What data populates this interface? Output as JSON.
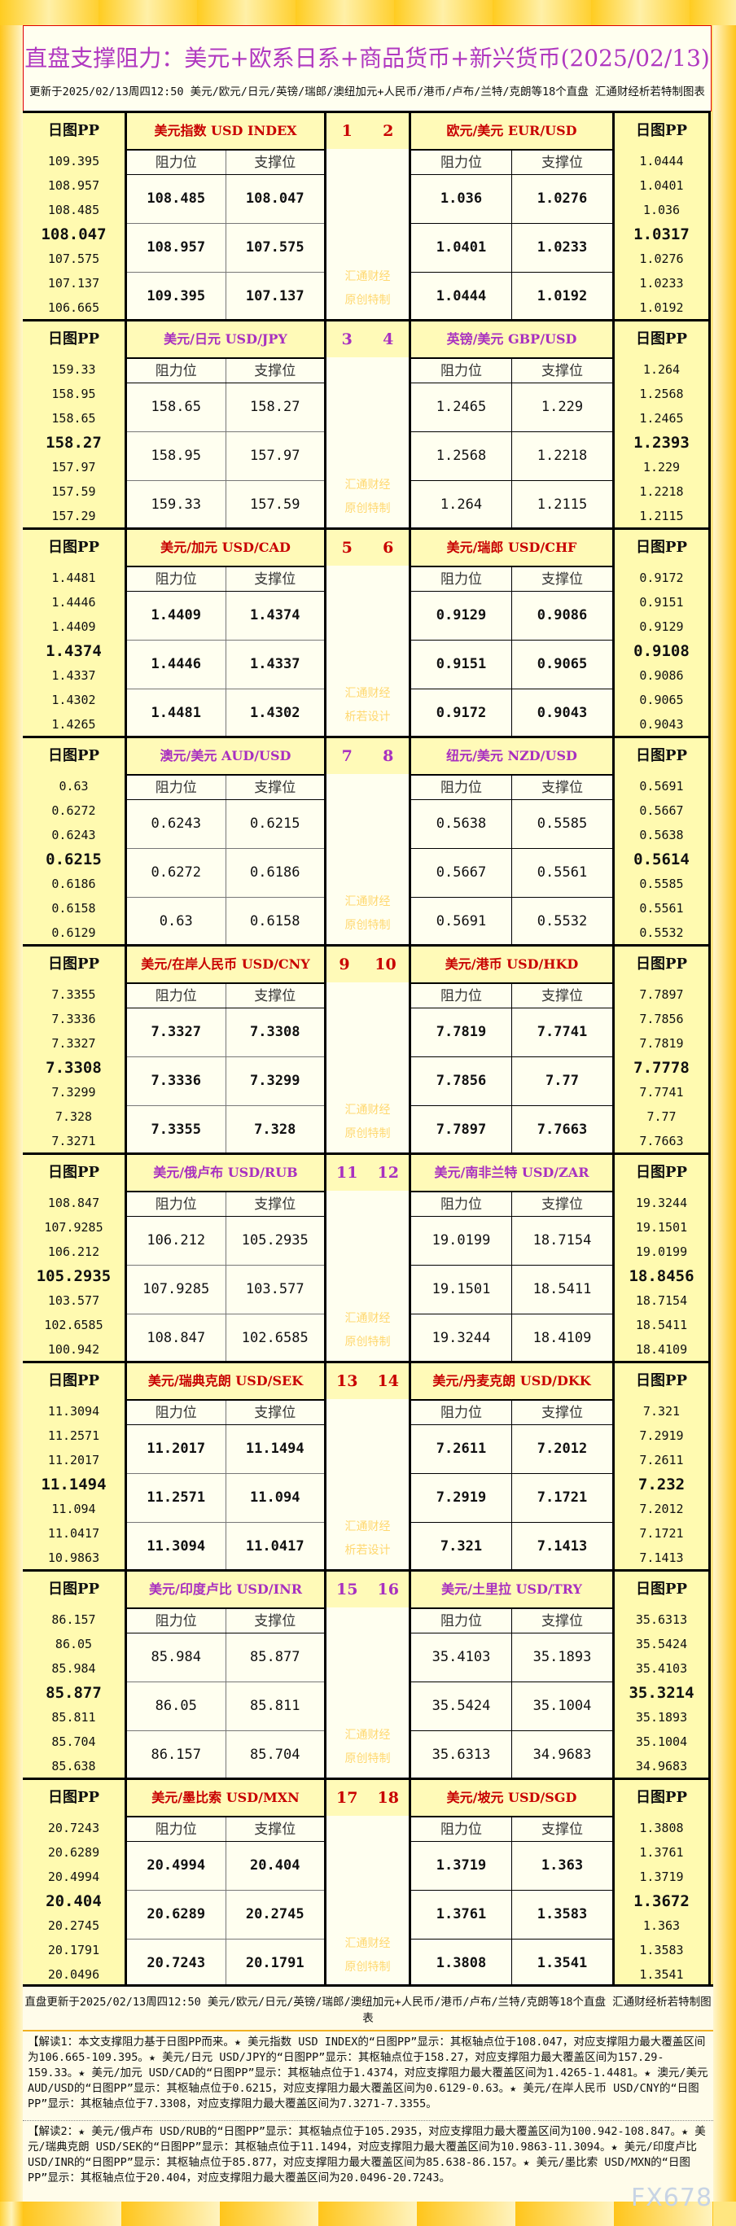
{
  "header": {
    "title": "直盘支撑阻力：美元+欧系日系+商品货币+新兴货币(2025/02/13)",
    "subtitle": "更新于2025/02/13周四12:50 美元/欧元/日元/英镑/瑞郎/澳纽加元+人民币/港币/卢布/兰特/克朗等18个直盘 汇通财经析若特制图表"
  },
  "labels": {
    "pp": "日图PP",
    "resistance": "阻力位",
    "support": "支撑位"
  },
  "colors": {
    "odd": "#c80000",
    "even": "#a830c0",
    "gold": "#ffc820",
    "cream": "#fffff0",
    "pp_bg": "#fffab0"
  },
  "blocks": [
    {
      "nums": [
        "1",
        "2"
      ],
      "watermark": [
        "汇通财经",
        "原创特制"
      ],
      "left": {
        "name": "美元指数 USD INDEX",
        "pp": [
          "109.395",
          "108.957",
          "108.485",
          "108.047",
          "107.575",
          "107.137",
          "106.665"
        ],
        "res": [
          "108.485",
          "108.957",
          "109.395"
        ],
        "sup": [
          "108.047",
          "107.575",
          "107.137"
        ]
      },
      "right": {
        "name": "欧元/美元 EUR/USD",
        "pp": [
          "1.0444",
          "1.0401",
          "1.036",
          "1.0317",
          "1.0276",
          "1.0233",
          "1.0192"
        ],
        "res": [
          "1.036",
          "1.0401",
          "1.0444"
        ],
        "sup": [
          "1.0276",
          "1.0233",
          "1.0192"
        ]
      }
    },
    {
      "nums": [
        "3",
        "4"
      ],
      "watermark": [
        "汇通财经",
        "原创特制"
      ],
      "left": {
        "name": "美元/日元 USD/JPY",
        "pp": [
          "159.33",
          "158.95",
          "158.65",
          "158.27",
          "157.97",
          "157.59",
          "157.29"
        ],
        "res": [
          "158.65",
          "158.95",
          "159.33"
        ],
        "sup": [
          "158.27",
          "157.97",
          "157.59"
        ]
      },
      "right": {
        "name": "英镑/美元 GBP/USD",
        "pp": [
          "1.264",
          "1.2568",
          "1.2465",
          "1.2393",
          "1.229",
          "1.2218",
          "1.2115"
        ],
        "res": [
          "1.2465",
          "1.2568",
          "1.264"
        ],
        "sup": [
          "1.229",
          "1.2218",
          "1.2115"
        ]
      }
    },
    {
      "nums": [
        "5",
        "6"
      ],
      "watermark": [
        "汇通财经",
        "析若设计"
      ],
      "left": {
        "name": "美元/加元 USD/CAD",
        "pp": [
          "1.4481",
          "1.4446",
          "1.4409",
          "1.4374",
          "1.4337",
          "1.4302",
          "1.4265"
        ],
        "res": [
          "1.4409",
          "1.4446",
          "1.4481"
        ],
        "sup": [
          "1.4374",
          "1.4337",
          "1.4302"
        ]
      },
      "right": {
        "name": "美元/瑞郎 USD/CHF",
        "pp": [
          "0.9172",
          "0.9151",
          "0.9129",
          "0.9108",
          "0.9086",
          "0.9065",
          "0.9043"
        ],
        "res": [
          "0.9129",
          "0.9151",
          "0.9172"
        ],
        "sup": [
          "0.9086",
          "0.9065",
          "0.9043"
        ]
      }
    },
    {
      "nums": [
        "7",
        "8"
      ],
      "watermark": [
        "汇通财经",
        "原创特制"
      ],
      "left": {
        "name": "澳元/美元 AUD/USD",
        "pp": [
          "0.63",
          "0.6272",
          "0.6243",
          "0.6215",
          "0.6186",
          "0.6158",
          "0.6129"
        ],
        "res": [
          "0.6243",
          "0.6272",
          "0.63"
        ],
        "sup": [
          "0.6215",
          "0.6186",
          "0.6158"
        ]
      },
      "right": {
        "name": "纽元/美元 NZD/USD",
        "pp": [
          "0.5691",
          "0.5667",
          "0.5638",
          "0.5614",
          "0.5585",
          "0.5561",
          "0.5532"
        ],
        "res": [
          "0.5638",
          "0.5667",
          "0.5691"
        ],
        "sup": [
          "0.5585",
          "0.5561",
          "0.5532"
        ]
      }
    },
    {
      "nums": [
        "9",
        "10"
      ],
      "watermark": [
        "汇通财经",
        "原创特制"
      ],
      "left": {
        "name": "美元/在岸人民币 USD/CNY",
        "pp": [
          "7.3355",
          "7.3336",
          "7.3327",
          "7.3308",
          "7.3299",
          "7.328",
          "7.3271"
        ],
        "res": [
          "7.3327",
          "7.3336",
          "7.3355"
        ],
        "sup": [
          "7.3308",
          "7.3299",
          "7.328"
        ]
      },
      "right": {
        "name": "美元/港币 USD/HKD",
        "pp": [
          "7.7897",
          "7.7856",
          "7.7819",
          "7.7778",
          "7.7741",
          "7.77",
          "7.7663"
        ],
        "res": [
          "7.7819",
          "7.7856",
          "7.7897"
        ],
        "sup": [
          "7.7741",
          "7.77",
          "7.7663"
        ]
      }
    },
    {
      "nums": [
        "11",
        "12"
      ],
      "watermark": [
        "汇通财经",
        "原创特制"
      ],
      "left": {
        "name": "美元/俄卢布 USD/RUB",
        "pp": [
          "108.847",
          "107.9285",
          "106.212",
          "105.2935",
          "103.577",
          "102.6585",
          "100.942"
        ],
        "res": [
          "106.212",
          "107.9285",
          "108.847"
        ],
        "sup": [
          "105.2935",
          "103.577",
          "102.6585"
        ]
      },
      "right": {
        "name": "美元/南非兰特 USD/ZAR",
        "pp": [
          "19.3244",
          "19.1501",
          "19.0199",
          "18.8456",
          "18.7154",
          "18.5411",
          "18.4109"
        ],
        "res": [
          "19.0199",
          "19.1501",
          "19.3244"
        ],
        "sup": [
          "18.7154",
          "18.5411",
          "18.4109"
        ]
      }
    },
    {
      "nums": [
        "13",
        "14"
      ],
      "watermark": [
        "汇通财经",
        "析若设计"
      ],
      "left": {
        "name": "美元/瑞典克朗 USD/SEK",
        "pp": [
          "11.3094",
          "11.2571",
          "11.2017",
          "11.1494",
          "11.094",
          "11.0417",
          "10.9863"
        ],
        "res": [
          "11.2017",
          "11.2571",
          "11.3094"
        ],
        "sup": [
          "11.1494",
          "11.094",
          "11.0417"
        ]
      },
      "right": {
        "name": "美元/丹麦克朗 USD/DKK",
        "pp": [
          "7.321",
          "7.2919",
          "7.2611",
          "7.232",
          "7.2012",
          "7.1721",
          "7.1413"
        ],
        "res": [
          "7.2611",
          "7.2919",
          "7.321"
        ],
        "sup": [
          "7.2012",
          "7.1721",
          "7.1413"
        ]
      }
    },
    {
      "nums": [
        "15",
        "16"
      ],
      "watermark": [
        "汇通财经",
        "原创特制"
      ],
      "left": {
        "name": "美元/印度卢比 USD/INR",
        "pp": [
          "86.157",
          "86.05",
          "85.984",
          "85.877",
          "85.811",
          "85.704",
          "85.638"
        ],
        "res": [
          "85.984",
          "86.05",
          "86.157"
        ],
        "sup": [
          "85.877",
          "85.811",
          "85.704"
        ]
      },
      "right": {
        "name": "美元/土里拉 USD/TRY",
        "pp": [
          "35.6313",
          "35.5424",
          "35.4103",
          "35.3214",
          "35.1893",
          "35.1004",
          "34.9683"
        ],
        "res": [
          "35.4103",
          "35.5424",
          "35.6313"
        ],
        "sup": [
          "35.1893",
          "35.1004",
          "34.9683"
        ]
      }
    },
    {
      "nums": [
        "17",
        "18"
      ],
      "watermark": [
        "汇通财经",
        "原创特制"
      ],
      "left": {
        "name": "美元/墨比索 USD/MXN",
        "pp": [
          "20.7243",
          "20.6289",
          "20.4994",
          "20.404",
          "20.2745",
          "20.1791",
          "20.0496"
        ],
        "res": [
          "20.4994",
          "20.6289",
          "20.7243"
        ],
        "sup": [
          "20.404",
          "20.2745",
          "20.1791"
        ]
      },
      "right": {
        "name": "美元/坡元 USD/SGD",
        "pp": [
          "1.3808",
          "1.3761",
          "1.3719",
          "1.3672",
          "1.363",
          "1.3583",
          "1.3541"
        ],
        "res": [
          "1.3719",
          "1.3761",
          "1.3808"
        ],
        "sup": [
          "1.363",
          "1.3583",
          "1.3541"
        ]
      }
    }
  ],
  "footer": {
    "updated": "直盘更新于2025/02/13周四12:50 美元/欧元/日元/英镑/瑞郎/澳纽加元+人民币/港币/卢布/兰特/克朗等18个直盘 汇通财经析若特制图表",
    "notes1": "【解读1：本文支撑阻力基于日图PP而来。★ 美元指数 USD INDEX的“日图PP”显示：其枢轴点位于108.047，对应支撑阻力最大覆盖区间为106.665-109.395。★ 美元/日元 USD/JPY的“日图PP”显示：其枢轴点位于158.27，对应支撑阻力最大覆盖区间为157.29-159.33。★ 美元/加元 USD/CAD的“日图PP”显示：其枢轴点位于1.4374，对应支撑阻力最大覆盖区间为1.4265-1.4481。★ 澳元/美元 AUD/USD的“日图PP”显示：其枢轴点位于0.6215，对应支撑阻力最大覆盖区间为0.6129-0.63。★ 美元/在岸人民币 USD/CNY的“日图PP”显示：其枢轴点位于7.3308，对应支撑阻力最大覆盖区间为7.3271-7.3355。",
    "notes2": "【解读2：★ 美元/俄卢布 USD/RUB的“日图PP”显示：其枢轴点位于105.2935，对应支撑阻力最大覆盖区间为100.942-108.847。★ 美元/瑞典克朗 USD/SEK的“日图PP”显示：其枢轴点位于11.1494，对应支撑阻力最大覆盖区间为10.9863-11.3094。★ 美元/印度卢比 USD/INR的“日图PP”显示：其枢轴点位于85.877，对应支撑阻力最大覆盖区间为85.638-86.157。★ 美元/墨比索 USD/MXN的“日图PP”显示：其枢轴点位于20.404，对应支撑阻力最大覆盖区间为20.0496-20.7243。",
    "logo": "FX678"
  }
}
